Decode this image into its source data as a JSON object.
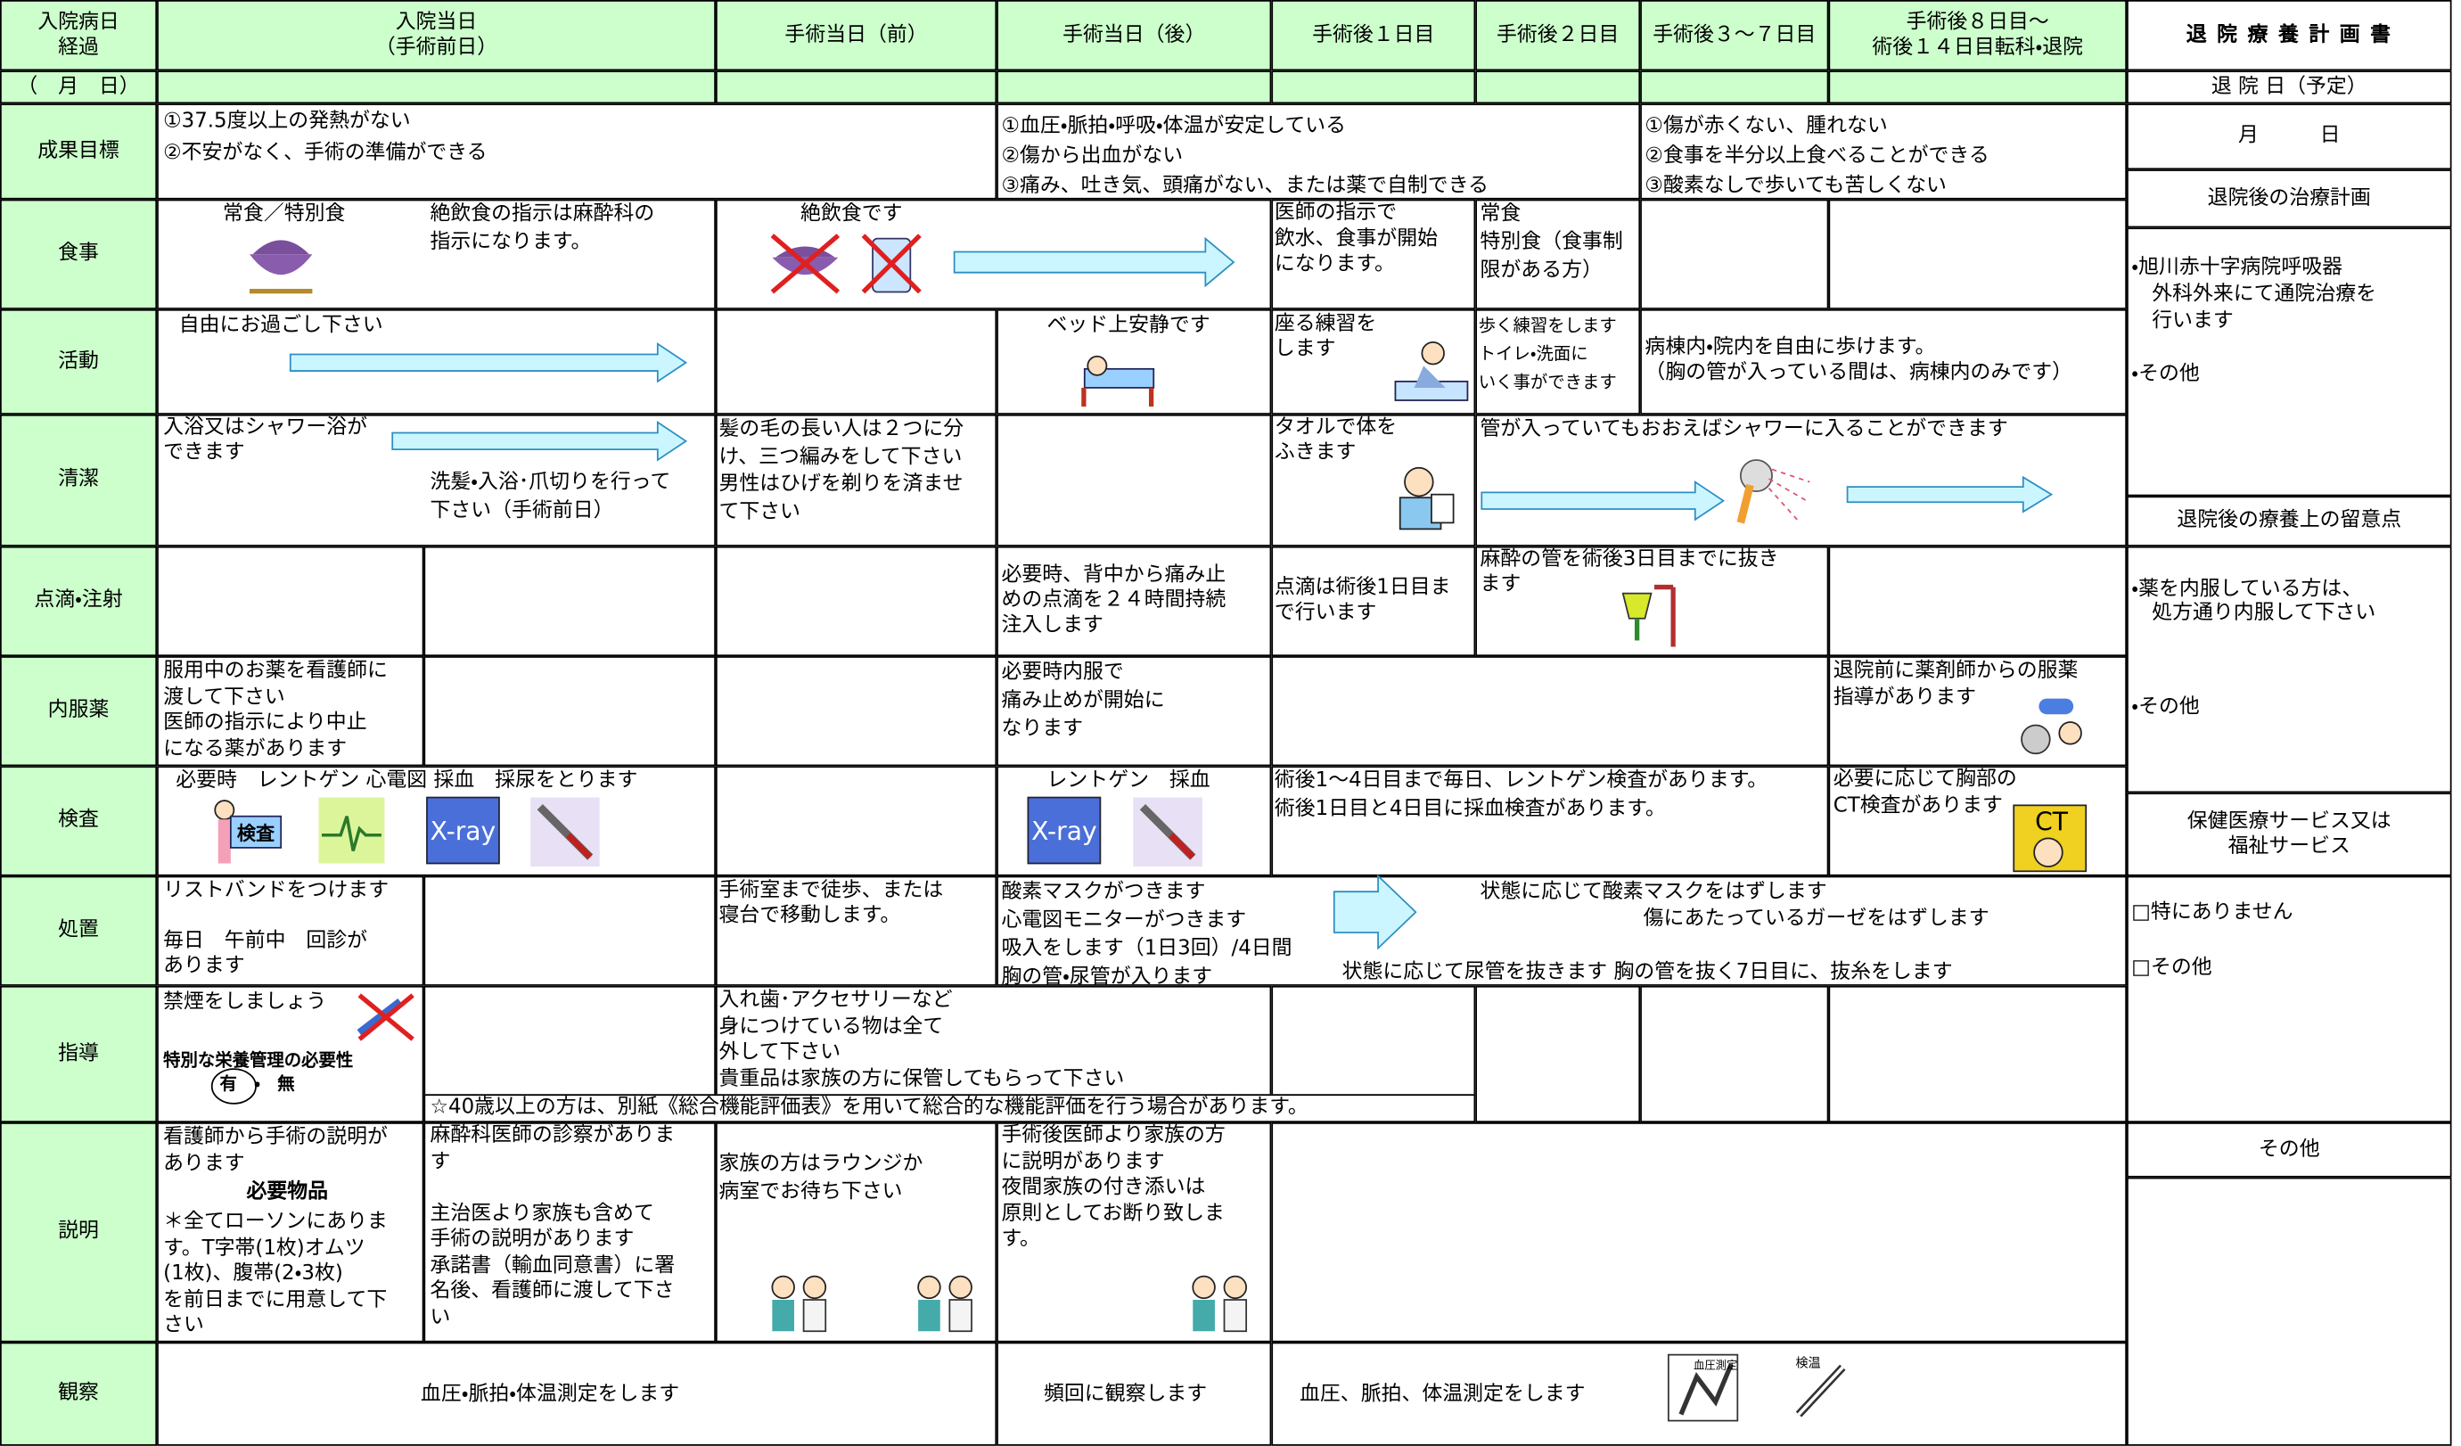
{
  "header": {
    "columns": [
      "入院病日\n経過",
      "入院当日\n（手術前日）",
      "手術当日（前）",
      "手術当日（後）",
      "手術後１日目",
      "手術後２日目",
      "手術後３～７日目",
      "手術後８日目～\n術後１４日目転科・退院"
    ],
    "date": "（　月　日）"
  },
  "rows": [
    {
      "label": "成果目標",
      "texts": [
        "①37.5度以上の発熱がない\n②不安がなく、手術の準備ができる",
        "①血圧・脈拍・呼吸・体温が安定している\n②傷から出血がない\n③痛み、吐き気、頭痛がない、または薬で自制できる",
        "①傷が赤くない、腫れない\n②食事を半分以上食べることができる\n③酸素なしで歩いても苦しくない"
      ]
    },
    {
      "label": "食事",
      "texts": [
        "常食／特別食",
        "絶飲食の指示は麻酔科の\n指示になります。",
        "絶飲食です",
        "医師の指示で\n飲水、食事が開始\nになります。",
        "常食\n特別食（食事制\n限がある方）"
      ]
    },
    {
      "label": "活動",
      "texts": [
        "自由にお過ごし下さい",
        "ベッド上安静です",
        "座る練習を\nします",
        "歩く練習をします\nトイレ・洗面に\nいく事ができます",
        "病棟内・院内を自由に歩けます。\n（胸の管が入っている間は、病棟内のみです）"
      ]
    },
    {
      "label": "清潔",
      "texts": [
        "入浴又はシャワー浴が\nできます",
        "洗髪・入浴･爪切りを行って\n下さい（手術前日）",
        "髪の毛の長い人は２つに分\nけ、三つ編みをして下さい\n男性はひげを剃りを済ませ\nて下さい",
        "タオルで体を\nふきます",
        "管が入っていてもおおえばシャワーに入ることができます"
      ]
    },
    {
      "label": "点滴・注射",
      "texts": [
        "必要時、背中から痛み止\nめの点滴を２４時間持続\n注入します",
        "点滴は術後1日目ま\nで行います",
        "麻酔の管を術後3日目までに抜き\nます"
      ]
    },
    {
      "label": "内服薬",
      "texts": [
        "服用中のお薬を看護師に\n渡して下さい\n医師の指示により中止\nになる薬があります",
        "必要時内服で\n痛み止めが開始に\nなります",
        "退院前に薬剤師からの服薬\n指導があります"
      ]
    },
    {
      "label": "検査",
      "texts": [
        "必要時　レントゲン 心電図 採血　採尿をとります",
        "レントゲン　採血",
        "術後1～4日目まで毎日、レントゲン検査があります。\n術後1日目と4日目に採血検査があります。",
        "必要に応じて胸部の\nCT検査があります"
      ]
    },
    {
      "label": "処置",
      "texts": [
        "リストバンドをつけます\n\n毎日　午前中　回診が\nあります",
        "手術室まで徒歩、または\n寝台で移動します。",
        "酸素マスクがつきます\n心電図モニターがつきます\n吸入をします（1日3回）/4日間\n胸の管・尿管が入ります",
        "状態に応じて酸素マスクをはずします",
        "傷にあたっているガーゼをはずします",
        "状態に応じて尿管を抜きます 胸の管を抜く7日目に、抜糸をします"
      ]
    },
    {
      "label": "指導",
      "texts": [
        "禁煙をしましょう",
        "特別な栄養管理の必要性",
        "有　・　無",
        "入れ歯･アクセサリーなど\n身につけている物は全て\n外して下さい\n貴重品は家族の方に保管してもらって下さい",
        "☆40歳以上の方は、別紙《総合機能評価表》を用いて総合的な機能評価を行う場合があります。"
      ]
    },
    {
      "label": "説明",
      "texts": [
        "看護師から手術の説明が\nあります",
        "必要物品",
        "＊全てローソンにありま\nす。T字帯(1枚)オムツ\n(1枚)、腹帯(2・3枚)\nを前日までに用意して下\nさい",
        "麻酔科医師の診察がありま\nす\n\n主治医より家族も含めて\n手術の説明があります\n承諾書（輸血同意書）に署\n名後、看護師に渡して下さ\nい",
        "家族の方はラウンジか\n病室でお待ち下さい",
        "手術後医師より家族の方\nに説明があります\n夜間家族の付き添いは\n原則としてお断り致しま\nす。"
      ]
    },
    {
      "label": "観察",
      "texts": [
        "血圧・脈拍・体温測定をします",
        "頻回に観察します",
        "血圧、脈拍、体温測定をします"
      ]
    }
  ],
  "side": {
    "title": "退 院 療 養 計 画 書",
    "date_label": "退 院 日（予定）",
    "date": "月　　　日",
    "treatment_heading": "退院後の治療計画",
    "treatment": "・旭川赤十字病院呼吸器\n　外科外来にて通院治療を\n　行います\n\n・その他",
    "care_heading": "退院後の療養上の留意点",
    "care": "・薬を内服している方は、\n　処方通り内服して下さい\n\n\n\n・その他",
    "service_heading": "保健医療サービス又は\n福祉サービス",
    "service": "□特にありません\n\n\n□その他",
    "other_heading": "その他"
  },
  "icons": {
    "exam": "検査",
    "xray": "X-ray",
    "ct": "CT",
    "bp": "血圧測定",
    "temp": "検温"
  }
}
